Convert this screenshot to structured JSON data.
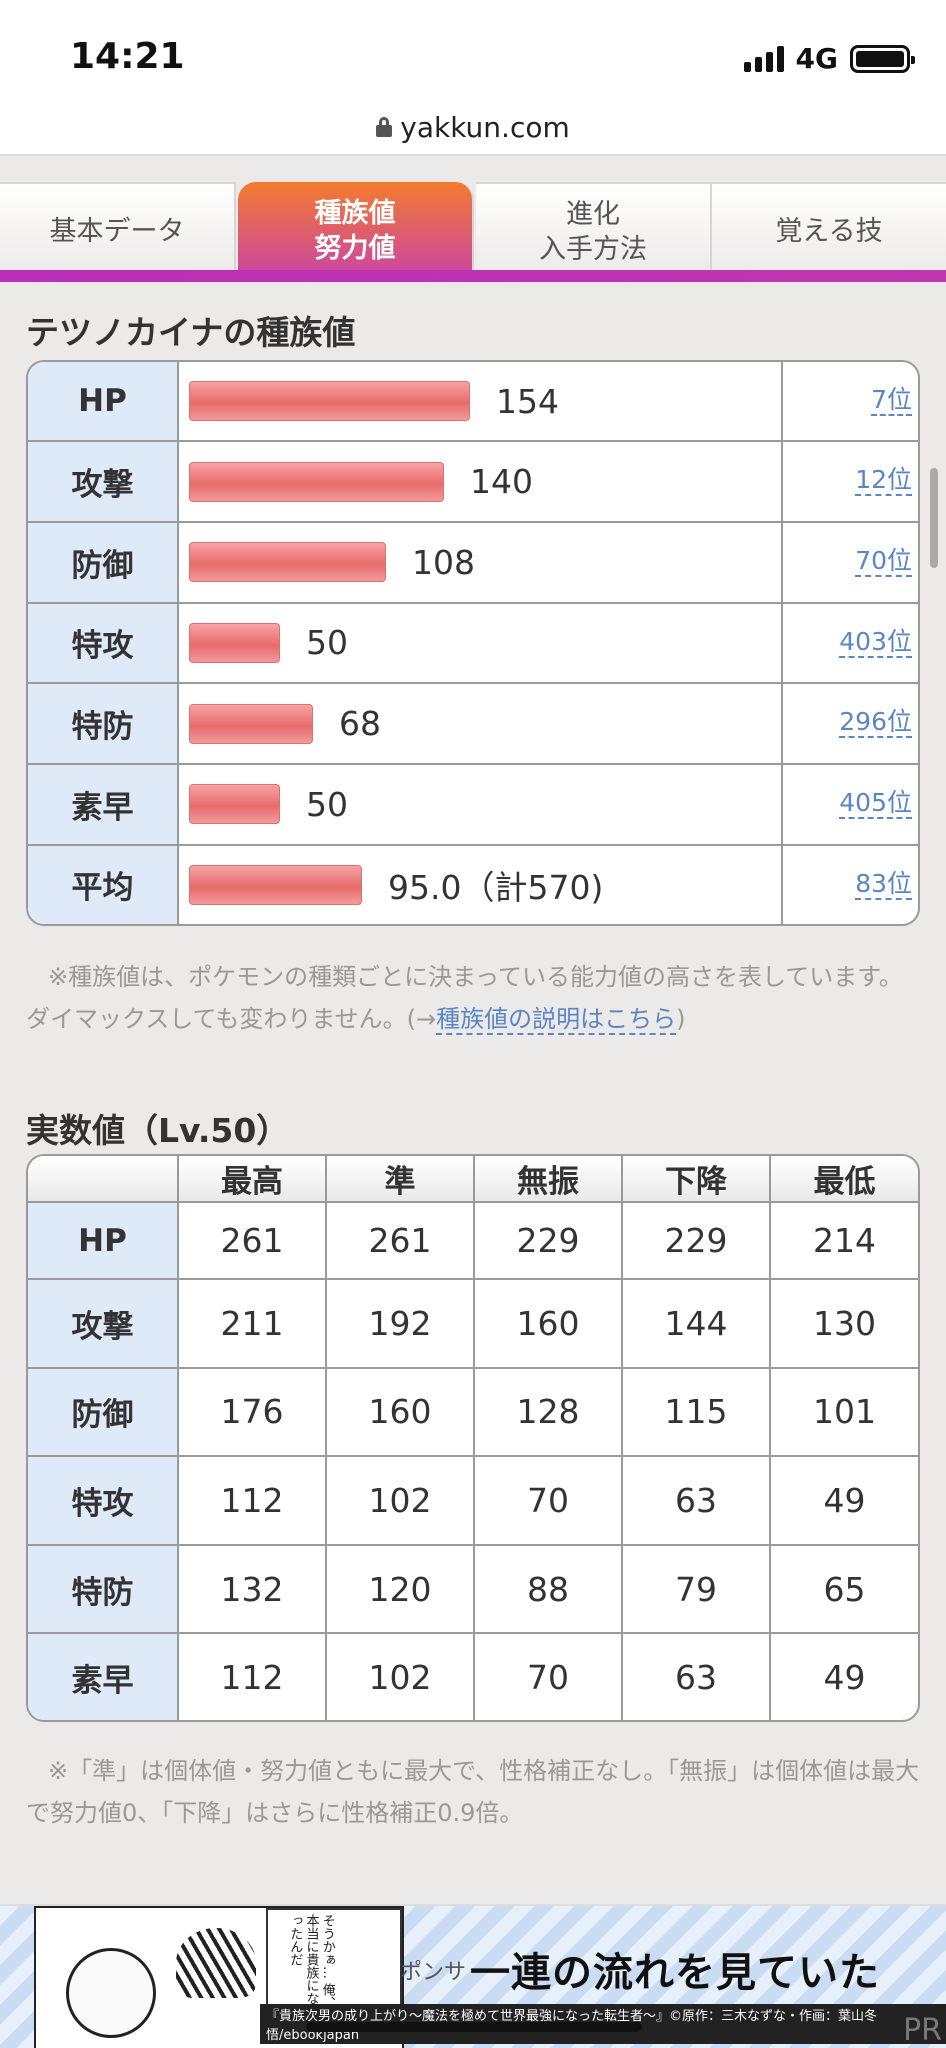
{
  "status": {
    "time": "14:21",
    "network": "4G"
  },
  "browser": {
    "url": "yakkun.com"
  },
  "tabs": [
    {
      "label": "基本データ",
      "active": false
    },
    {
      "label": "種族値\n努力値",
      "active": true
    },
    {
      "label": "進化\n入手方法",
      "active": false
    },
    {
      "label": "覚える技",
      "active": false
    }
  ],
  "base_stats": {
    "title": "テツノカイナの種族値",
    "max_value": 255,
    "rows": [
      {
        "label": "HP",
        "value": 154,
        "display": "154",
        "rank": "7位"
      },
      {
        "label": "攻撃",
        "value": 140,
        "display": "140",
        "rank": "12位"
      },
      {
        "label": "防御",
        "value": 108,
        "display": "108",
        "rank": "70位"
      },
      {
        "label": "特攻",
        "value": 50,
        "display": "50",
        "rank": "403位"
      },
      {
        "label": "特防",
        "value": 68,
        "display": "68",
        "rank": "296位"
      },
      {
        "label": "素早",
        "value": 50,
        "display": "50",
        "rank": "405位"
      },
      {
        "label": "平均",
        "value": 95,
        "display": "95.0（計570)",
        "rank": "83位"
      }
    ],
    "note_text": "※種族値は、ポケモンの種類ごとに決まっている能力値の高さを表しています。ダイマックスしても変わりません。(→",
    "note_link": "種族値の説明はこちら",
    "note_end": ")"
  },
  "actual_stats": {
    "title": "実数値（Lv.50）",
    "headers": [
      "",
      "最高",
      "準",
      "無振",
      "下降",
      "最低"
    ],
    "rows": [
      {
        "label": "HP",
        "values": [
          "261",
          "261",
          "229",
          "229",
          "214"
        ]
      },
      {
        "label": "攻撃",
        "values": [
          "211",
          "192",
          "160",
          "144",
          "130"
        ]
      },
      {
        "label": "防御",
        "values": [
          "176",
          "160",
          "128",
          "115",
          "101"
        ]
      },
      {
        "label": "特攻",
        "values": [
          "112",
          "102",
          "70",
          "63",
          "49"
        ]
      },
      {
        "label": "特防",
        "values": [
          "132",
          "120",
          "88",
          "79",
          "65"
        ]
      },
      {
        "label": "素早",
        "values": [
          "112",
          "102",
          "70",
          "63",
          "49"
        ]
      }
    ],
    "note": "※「準」は個体値・努力値ともに最大で、性格補正なし。「無振」は個体値は最大で努力値0、「下降」はさらに性格補正0.9倍。"
  },
  "ad": {
    "headline": "一連の流れを見ていた",
    "sponsor": "ポンサ",
    "comic_text": "そうかぁ… 俺、本当に貴族になったんだ",
    "caption": "『貴族次男の成り上がり〜魔法を極めて世界最強になった転生者〜』©原作：三木なずな・作画：葉山冬悟/ebookjapan",
    "pr": "PR"
  },
  "colors": {
    "tab_active_top": "#f37b2e",
    "tab_active_bottom": "#c944a6",
    "row_head_bg": "#dfeaf8",
    "bar": "#e86b6b",
    "link": "#5b86c4"
  }
}
